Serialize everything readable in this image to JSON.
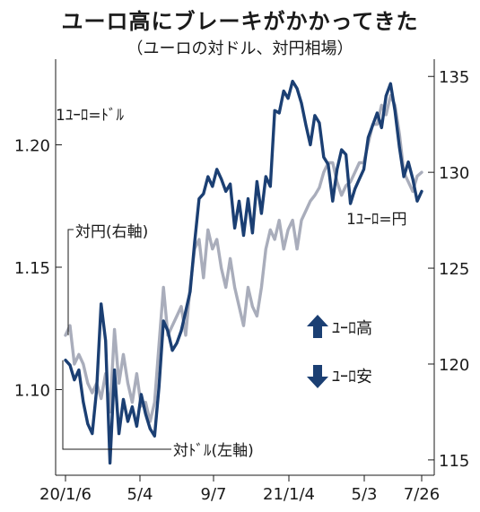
{
  "chart_data": {
    "type": "line",
    "title": "ユーロ高にブレーキがかかってきた",
    "subtitle": "（ユーロの対ドル、対円相場）",
    "x_tick_labels": [
      "20/1/6",
      "5/4",
      "9/7",
      "21/1/4",
      "5/3",
      "7/26"
    ],
    "y_left": {
      "ticks": [
        1.1,
        1.15,
        1.2
      ],
      "tick_labels": [
        "1.10",
        "1.15",
        "1.20"
      ],
      "range": [
        1.065,
        1.235
      ]
    },
    "y_right": {
      "ticks": [
        115,
        120,
        125,
        130,
        135
      ],
      "tick_labels": [
        "115",
        "120",
        "125",
        "130",
        "135"
      ],
      "range": [
        114.2,
        135.9
      ]
    },
    "annotations": {
      "usd_unit": "1ﾕｰﾛ=ﾄﾞﾙ",
      "jpy_unit": "1ﾕｰﾛ=円",
      "jpy_callout": "対円(右軸)",
      "usd_callout": "対ﾄﾞﾙ(左軸)",
      "legend_up": "ﾕｰﾛ高",
      "legend_down": "ﾕｰﾛ安"
    },
    "colors": {
      "usd": "#1b3f73",
      "jpy": "#a9adbb",
      "arrow": "#1b3f73"
    },
    "series": [
      {
        "name": "対ドル(左軸)",
        "axis": "left",
        "values": [
          1.112,
          1.11,
          1.104,
          1.108,
          1.095,
          1.086,
          1.082,
          1.1,
          1.135,
          1.12,
          1.07,
          1.108,
          1.082,
          1.096,
          1.087,
          1.093,
          1.085,
          1.098,
          1.09,
          1.084,
          1.081,
          1.101,
          1.128,
          1.124,
          1.116,
          1.119,
          1.124,
          1.132,
          1.14,
          1.16,
          1.178,
          1.18,
          1.187,
          1.183,
          1.19,
          1.186,
          1.181,
          1.184,
          1.166,
          1.177,
          1.163,
          1.178,
          1.164,
          1.185,
          1.172,
          1.187,
          1.183,
          1.214,
          1.213,
          1.222,
          1.219,
          1.226,
          1.223,
          1.217,
          1.208,
          1.2,
          1.212,
          1.209,
          1.195,
          1.192,
          1.177,
          1.19,
          1.198,
          1.196,
          1.176,
          1.182,
          1.186,
          1.19,
          1.203,
          1.208,
          1.213,
          1.207,
          1.22,
          1.225,
          1.214,
          1.199,
          1.187,
          1.193,
          1.186,
          1.177,
          1.181
        ]
      },
      {
        "name": "対円(右軸)",
        "axis": "right",
        "values": [
          121.5,
          122.0,
          120.0,
          120.5,
          120.0,
          119.0,
          118.5,
          119.0,
          118.2,
          119.5,
          117.5,
          121.8,
          119.0,
          120.5,
          119.0,
          118.0,
          119.5,
          117.8,
          118.0,
          117.0,
          118.0,
          121.0,
          124.0,
          121.5,
          122.0,
          122.5,
          123.0,
          121.5,
          124.0,
          126.0,
          126.5,
          124.5,
          127.0,
          126.0,
          126.5,
          125.0,
          124.0,
          125.5,
          124.0,
          123.0,
          122.0,
          124.0,
          123.0,
          122.5,
          124.0,
          126.0,
          127.0,
          126.5,
          127.5,
          126.0,
          127.0,
          127.5,
          126.0,
          127.5,
          128.0,
          128.5,
          128.8,
          129.2,
          130.0,
          130.5,
          130.5,
          129.5,
          128.8,
          129.3,
          129.5,
          130.0,
          130.5,
          130.5,
          131.5,
          132.5,
          132.5,
          133.5,
          133.0,
          134.0,
          133.5,
          132.0,
          130.0,
          129.5,
          129.0,
          129.8,
          130.0
        ]
      }
    ]
  }
}
